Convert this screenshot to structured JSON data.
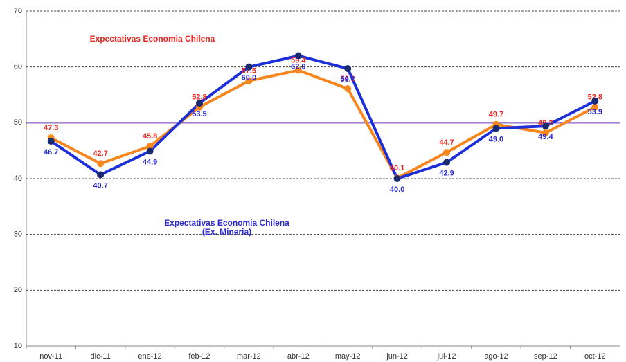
{
  "chart_data": {
    "type": "line",
    "categories": [
      "nov-11",
      "dic-11",
      "ene-12",
      "feb-12",
      "mar-12",
      "abr-12",
      "may-12",
      "jun-12",
      "jul-12",
      "ago-12",
      "sep-12",
      "oct-12"
    ],
    "series": [
      {
        "name": "Expectativas Economia Chilena",
        "color": "#f7861f",
        "label_color": "#e8261e",
        "values": [
          47.3,
          42.7,
          45.8,
          52.8,
          57.5,
          59.4,
          56.1,
          40.1,
          44.7,
          49.7,
          48.2,
          52.8
        ],
        "value_labels": [
          "47.3",
          "42.7",
          "45.8",
          "52.8",
          "57.5",
          "59.4",
          "56.1",
          "40.1",
          "44.7",
          "49.7",
          "48.2",
          "52.8"
        ]
      },
      {
        "name": "Expectativas Economia Chilena (Ex. Mineria)",
        "color": "#1d2fd6",
        "label_color": "#2a2ad0",
        "values": [
          46.7,
          40.7,
          44.9,
          53.5,
          60.0,
          62.0,
          59.7,
          40.0,
          42.9,
          49.0,
          49.4,
          53.9
        ],
        "value_labels": [
          "46.7",
          "40.7",
          "44.9",
          "53.5",
          "60.0",
          "62.0",
          "59.7",
          "40.0",
          "42.9",
          "49.0",
          "49.4",
          "53.9"
        ]
      }
    ],
    "reference_line": {
      "value": 50,
      "color": "#6a3cb0"
    },
    "ylim": [
      10,
      70
    ],
    "yticks": [
      10,
      20,
      30,
      40,
      50,
      60,
      70
    ],
    "grid": true
  }
}
